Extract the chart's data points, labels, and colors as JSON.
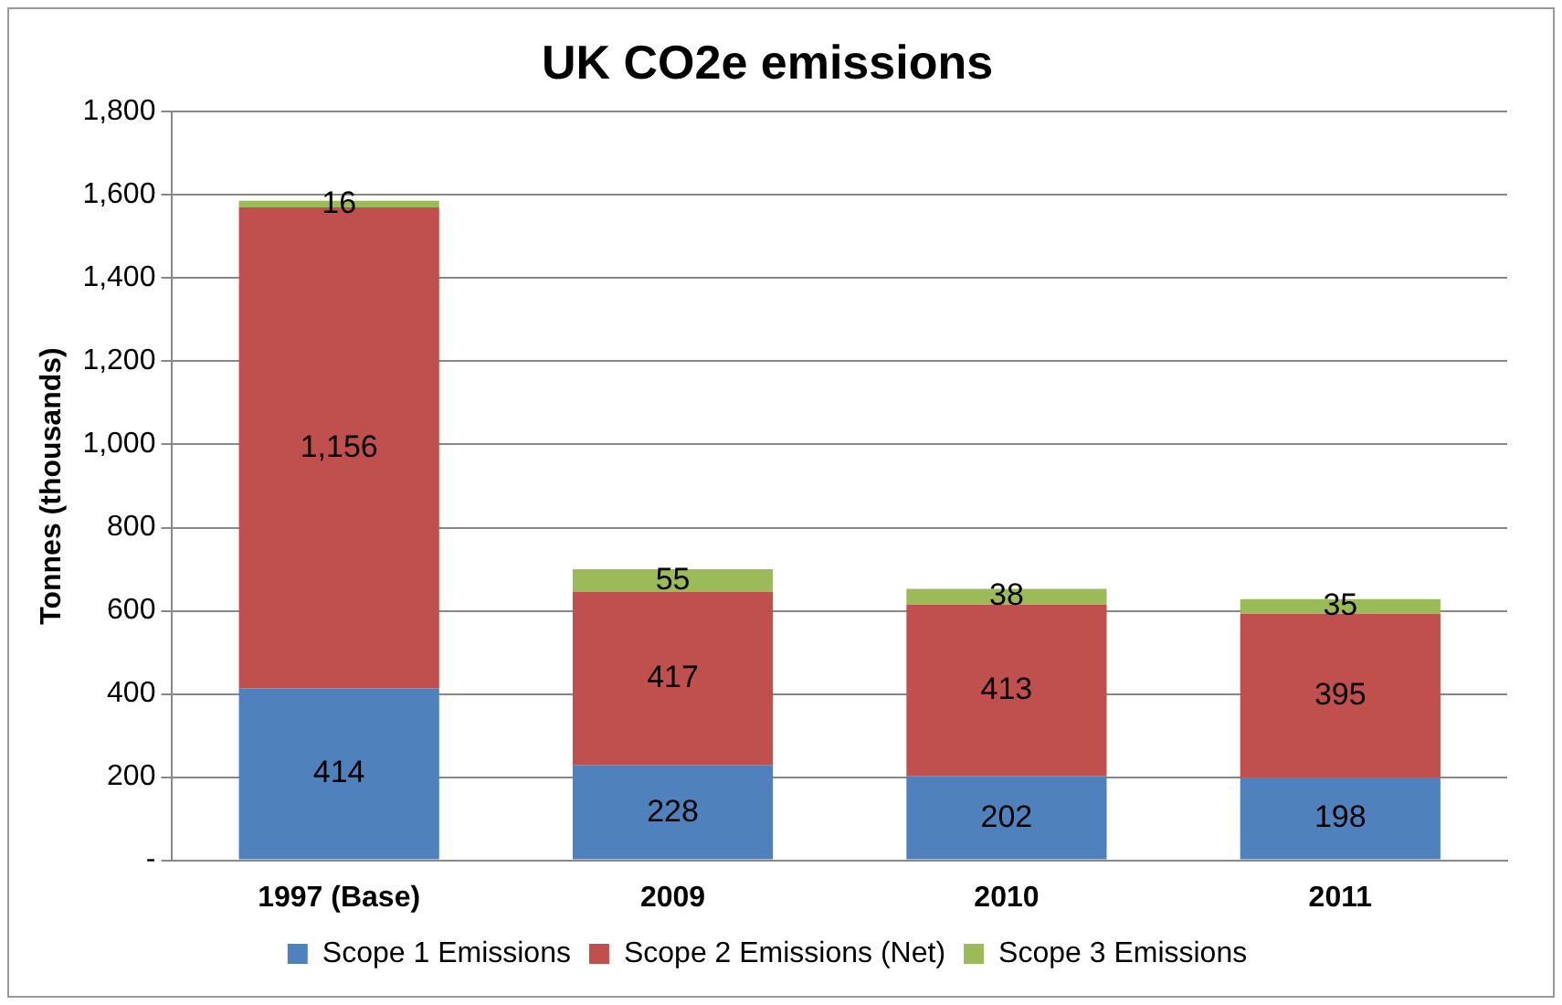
{
  "chart_data": {
    "type": "bar",
    "title": "UK CO2e emissions",
    "ylabel": "Tonnes (thousands)",
    "categories": [
      "1997 (Base)",
      "2009",
      "2010",
      "2011"
    ],
    "stacked": true,
    "series": [
      {
        "name": "Scope 1 Emissions",
        "color": "#4f81bd",
        "values": [
          414,
          228,
          202,
          198
        ],
        "value_labels": [
          "414",
          "228",
          "202",
          "198"
        ]
      },
      {
        "name": "Scope 2 Emissions (Net)",
        "color": "#c0504d",
        "values": [
          1156,
          417,
          413,
          395
        ],
        "value_labels": [
          "1,156",
          "417",
          "413",
          "395"
        ]
      },
      {
        "name": "Scope 3 Emissions",
        "color": "#9bbb59",
        "values": [
          16,
          55,
          38,
          35
        ],
        "value_labels": [
          "16",
          "55",
          "38",
          "35"
        ]
      }
    ],
    "ylim": [
      0,
      1800
    ],
    "yticks": [
      {
        "value": 0,
        "label": "-"
      },
      200,
      400,
      600,
      800,
      {
        "value": 1000,
        "label": "1,000"
      },
      {
        "value": 1200,
        "label": "1,200"
      },
      {
        "value": 1400,
        "label": "1,400"
      },
      {
        "value": 1600,
        "label": "1,600"
      },
      {
        "value": 1800,
        "label": "1,800"
      }
    ],
    "grid": "y",
    "legend": "bottom"
  }
}
